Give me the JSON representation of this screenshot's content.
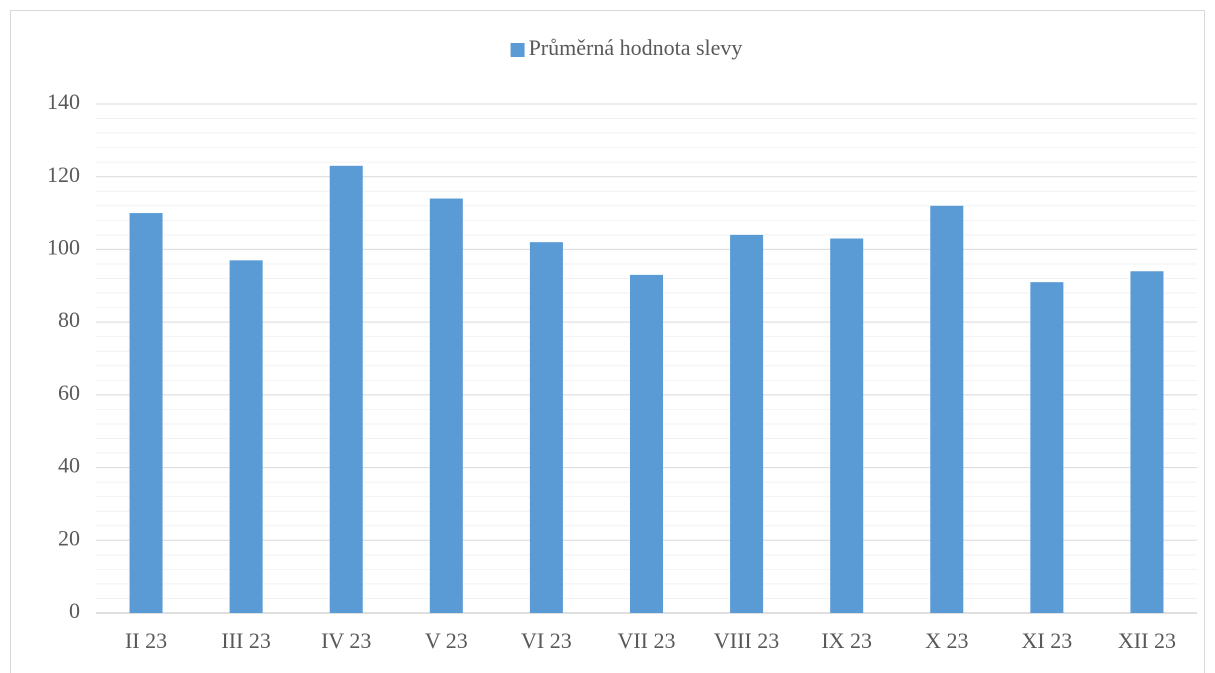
{
  "chart_data": {
    "type": "bar",
    "categories": [
      "II 23",
      "III 23",
      "IV 23",
      "V 23",
      "VI 23",
      "VII 23",
      "VIII 23",
      "IX 23",
      "X 23",
      "XI 23",
      "XII 23"
    ],
    "series": [
      {
        "name": "Průměrná hodnota slevy",
        "color": "#5b9bd5",
        "values": [
          110,
          97,
          123,
          114,
          102,
          93,
          104,
          103,
          112,
          91,
          94
        ]
      }
    ],
    "ylim": [
      0,
      140
    ],
    "yticks": [
      0,
      20,
      40,
      60,
      80,
      100,
      120,
      140
    ],
    "grid": true,
    "minor_grid": true,
    "legend": "top"
  }
}
